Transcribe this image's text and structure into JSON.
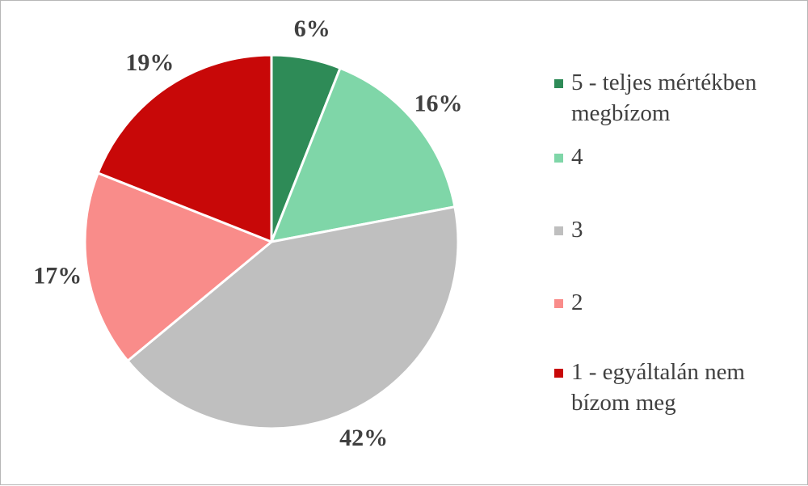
{
  "chart_data": {
    "type": "pie",
    "title": "",
    "start_angle_deg": 0,
    "direction": "clockwise",
    "slices": [
      {
        "label": "5 - teljes mértékben megbízom",
        "value": 6,
        "display": "6%",
        "color": "#2e8b57"
      },
      {
        "label": "4",
        "value": 16,
        "display": "16%",
        "color": "#7fd6a8"
      },
      {
        "label": "3",
        "value": 42,
        "display": "42%",
        "color": "#bfbfbf"
      },
      {
        "label": "2",
        "value": 17,
        "display": "17%",
        "color": "#f98c8a"
      },
      {
        "label": "1 - egyáltalán nem bízom meg",
        "value": 19,
        "display": "19%",
        "color": "#c80808"
      }
    ],
    "legend_position": "right"
  }
}
